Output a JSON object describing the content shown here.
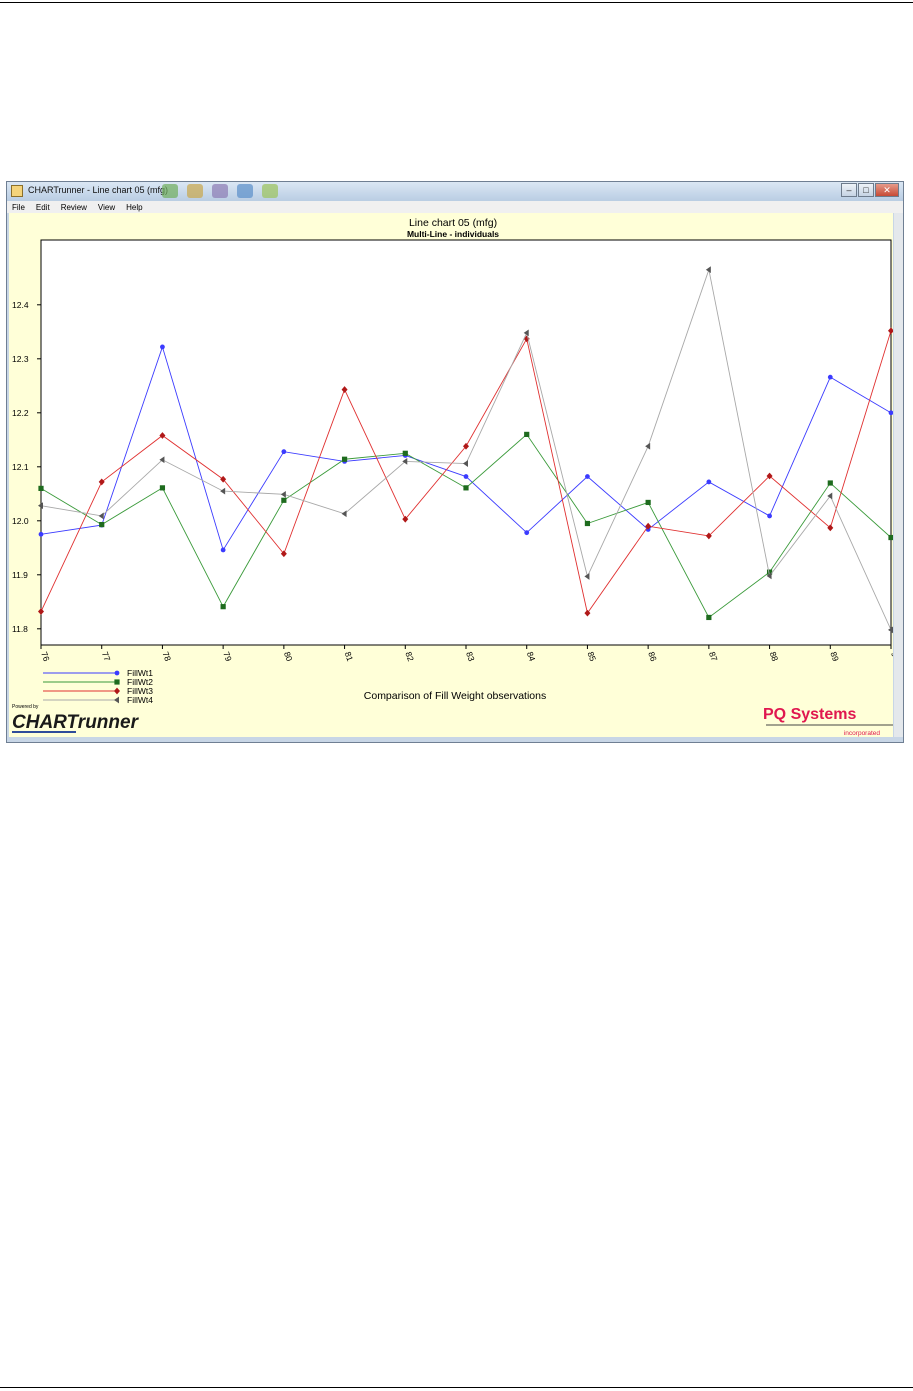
{
  "window": {
    "title": "CHARTrunner - Line chart 05 (mfg)",
    "menu": [
      "File",
      "Edit",
      "Review",
      "View",
      "Help"
    ],
    "buttons": {
      "minimize": "–",
      "maximize": "□",
      "close": "✕"
    },
    "icons": [
      "app-icon",
      "minimize-icon",
      "maximize-icon",
      "close-icon"
    ]
  },
  "chart_data": {
    "type": "line",
    "title": "Line chart 05 (mfg)",
    "subtitle": "Multi-Line - individuals",
    "footer": "Comparison of Fill Weight observations",
    "x": [
      "76",
      "77",
      "78",
      "79",
      "80",
      "81",
      "82",
      "83",
      "84",
      "85",
      "86",
      "87",
      "88",
      "89",
      "90"
    ],
    "ylim": [
      11.77,
      12.52
    ],
    "yticks": [
      "11.8",
      "11.9",
      "12.0",
      "12.1",
      "12.2",
      "12.3",
      "12.4"
    ],
    "grid": false,
    "legend": "bottom-left",
    "series": [
      {
        "name": "FillWt1",
        "color": "#3b3bff",
        "marker": "circle",
        "values": [
          11.975,
          11.992,
          12.322,
          11.946,
          12.128,
          12.11,
          12.121,
          12.082,
          11.978,
          12.082,
          11.984,
          12.072,
          12.009,
          12.266,
          12.2
        ]
      },
      {
        "name": "FillWt2",
        "color": "#3a9a3a",
        "marker": "square",
        "values": [
          12.06,
          11.993,
          12.061,
          11.841,
          12.038,
          12.114,
          12.125,
          12.061,
          12.16,
          11.995,
          12.034,
          11.821,
          11.905,
          12.07,
          11.969
        ]
      },
      {
        "name": "FillWt3",
        "color": "#e03030",
        "marker": "diamond",
        "values": [
          11.832,
          12.072,
          12.158,
          12.077,
          11.939,
          12.243,
          12.003,
          12.138,
          12.337,
          11.829,
          11.99,
          11.972,
          12.083,
          11.987,
          12.352
        ]
      },
      {
        "name": "FillWt4",
        "color": "#a8a8a8",
        "marker": "triangle",
        "values": [
          12.028,
          12.009,
          12.113,
          12.055,
          12.049,
          12.013,
          12.11,
          12.106,
          12.348,
          11.897,
          12.138,
          12.465,
          11.898,
          12.046,
          11.798
        ]
      }
    ]
  },
  "branding": {
    "powered_by": "Powered by",
    "product": "CHARTrunner",
    "company": "PQ Systems",
    "company_sub": "incorporated"
  }
}
